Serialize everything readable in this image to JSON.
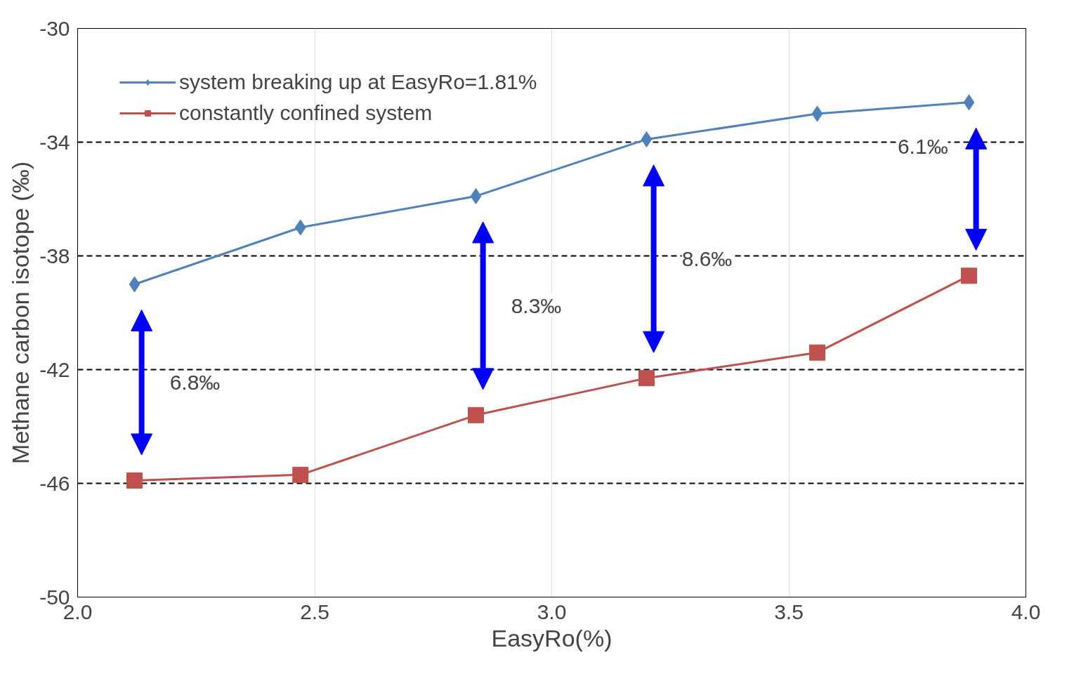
{
  "chart_data": {
    "type": "line",
    "xlabel": "EasyRo(%)",
    "ylabel": "Methane carbon isotope (‰)",
    "xlim": [
      2.0,
      4.0
    ],
    "xticks": [
      {
        "value": 2.0,
        "label": "2.0"
      },
      {
        "value": 2.5,
        "label": "2.5"
      },
      {
        "value": 3.0,
        "label": "3.0"
      },
      {
        "value": 3.5,
        "label": "3.5"
      },
      {
        "value": 4.0,
        "label": "4.0"
      }
    ],
    "ylim": [
      -50,
      -30
    ],
    "yticks": [
      -50,
      -46,
      -42,
      -38,
      -34,
      -30
    ],
    "grid": true,
    "legend": "top left",
    "line_style": "solid",
    "series": [
      {
        "name": "system breaking up at EasyRo=1.81%",
        "color": "#4f81bd",
        "marker": "diamond",
        "x": [
          2.12,
          2.47,
          2.84,
          3.2,
          3.56,
          3.88
        ],
        "values": [
          -39.0,
          -37.0,
          -35.9,
          -33.9,
          -33.0,
          -32.6
        ]
      },
      {
        "name": "constantly confined system",
        "color": "#c0504d",
        "marker": "square",
        "x": [
          2.12,
          2.47,
          2.84,
          3.2,
          3.56,
          3.88
        ],
        "values": [
          -45.9,
          -45.7,
          -43.6,
          -42.3,
          -41.4,
          -38.7
        ]
      }
    ],
    "annotations": [
      "6.8‰",
      "8.3‰",
      "8.6‰",
      "6.1‰"
    ]
  }
}
